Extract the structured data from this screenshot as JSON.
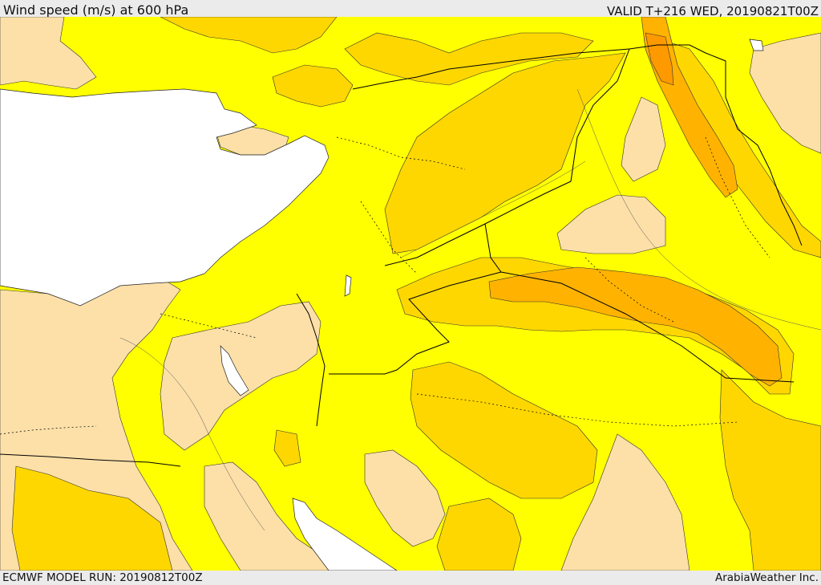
{
  "header": {
    "title": "Wind speed (m/s) at 600 hPa",
    "valid": "VALID T+216 WED, 20190821T00Z"
  },
  "footer": {
    "model_run": "ECMWF MODEL RUN: 20190812T00Z",
    "credit": "ArabiaWeather Inc."
  },
  "colors": {
    "band_1": "#fde0a8",
    "band_2": "#ffff00",
    "band_3": "#ffd700",
    "band_4": "#ffb300",
    "band_5": "#ff9900",
    "water": "#ffffff",
    "border": "#000000"
  }
}
